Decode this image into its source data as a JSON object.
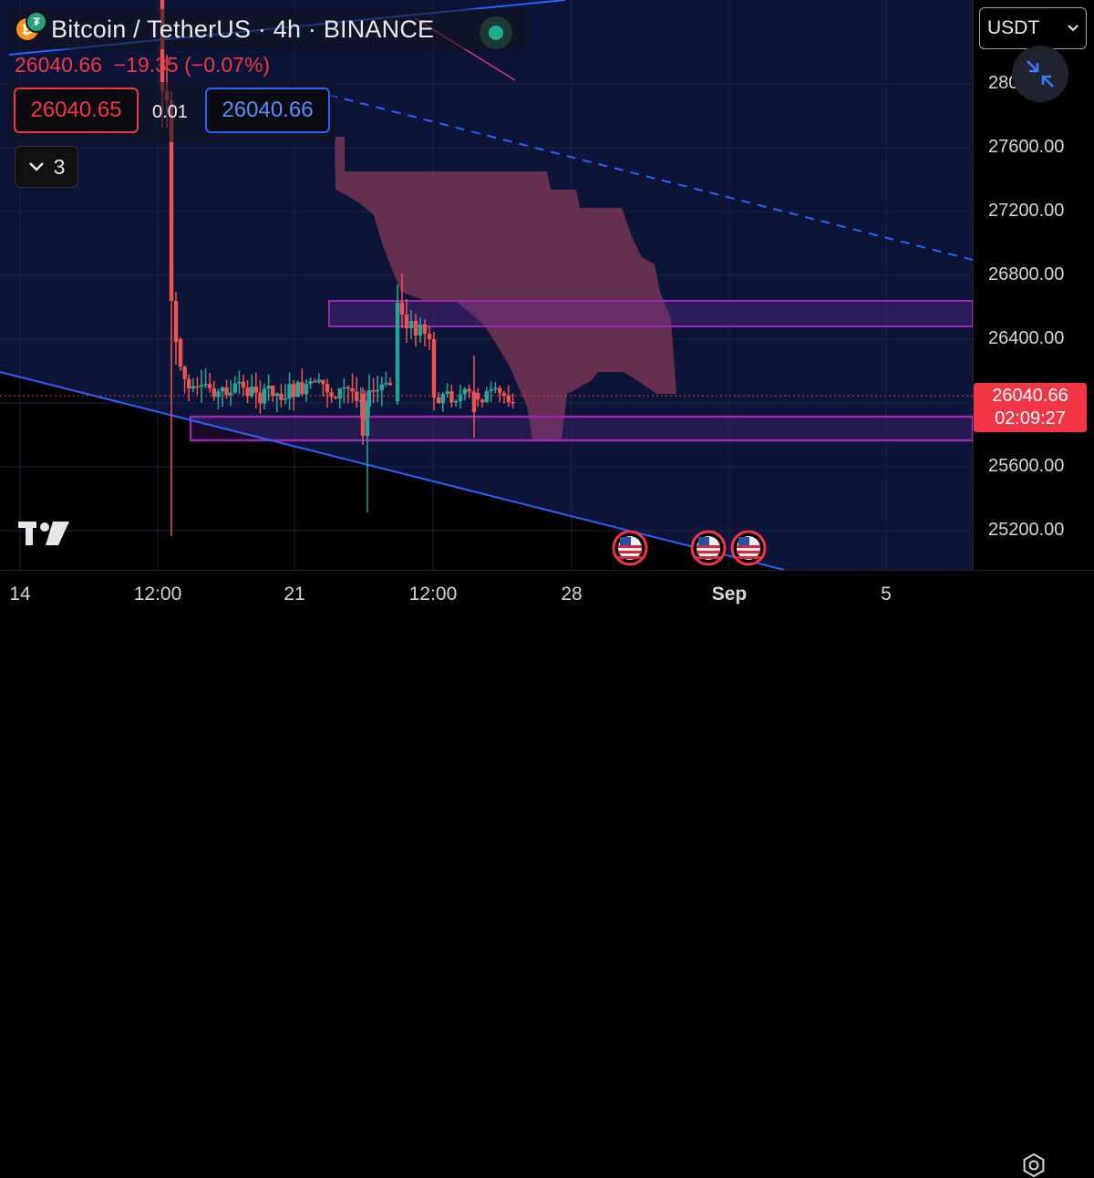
{
  "symbol": {
    "title": "Bitcoin / TetherUS · 4h · BINANCE",
    "base_icon": "bitcoin-icon",
    "quote_icon": "tether-icon",
    "base_glyph": "₿",
    "quote_glyph": "₮",
    "market_status_color": "#22ab94"
  },
  "legend": {
    "last": "26040.66",
    "change": "−19.35",
    "change_pct": "(−0.07%)",
    "change_color": "#f23645"
  },
  "quote": {
    "sell": "26040.65",
    "spread": "0.01",
    "buy": "26040.66"
  },
  "indicators": {
    "count": "3",
    "icon": "chevron-down-icon"
  },
  "currency": {
    "selected": "USDT",
    "icon": "chevron-down-icon"
  },
  "collapse_button": {
    "icon": "collapse-arrows-icon"
  },
  "price_axis": {
    "ticks": [
      "280",
      "27600.00",
      "27200.00",
      "26800.00",
      "26400.00",
      "25600.00",
      "25200.00"
    ],
    "last_price": "26040.66",
    "countdown": "02:09:27"
  },
  "time_axis": {
    "ticks": [
      {
        "label": "14",
        "bold": false
      },
      {
        "label": "12:00",
        "bold": false
      },
      {
        "label": "21",
        "bold": false
      },
      {
        "label": "12:00",
        "bold": false
      },
      {
        "label": "28",
        "bold": false
      },
      {
        "label": "Sep",
        "bold": true
      },
      {
        "label": "5",
        "bold": false
      }
    ]
  },
  "events": [
    {
      "icon": "us-flag-icon"
    },
    {
      "icon": "us-flag-icon"
    },
    {
      "icon": "us-flag-icon"
    }
  ],
  "colors": {
    "up": "#26a69a",
    "down": "#ef5350",
    "zone_border": "#9c27b0",
    "trendline": "#2962ff",
    "cloud": "#8c3a5a",
    "background_upper": "#0c1537"
  },
  "chart_data": {
    "type": "candlestick",
    "timeframe": "4h",
    "ylim": [
      24950,
      28300
    ],
    "zones": [
      {
        "top": 26640,
        "bottom": 26480
      },
      {
        "top": 25820,
        "bottom": 25670
      }
    ],
    "last_price": 26040.66,
    "candles_overview": {
      "pre_drop_high": 28900,
      "drop_low": 25160,
      "range_low": 25300,
      "range_high": 26780
    }
  },
  "watermark": {
    "icon": "tradingview-logo-icon"
  },
  "settings": {
    "icon": "settings-icon"
  }
}
